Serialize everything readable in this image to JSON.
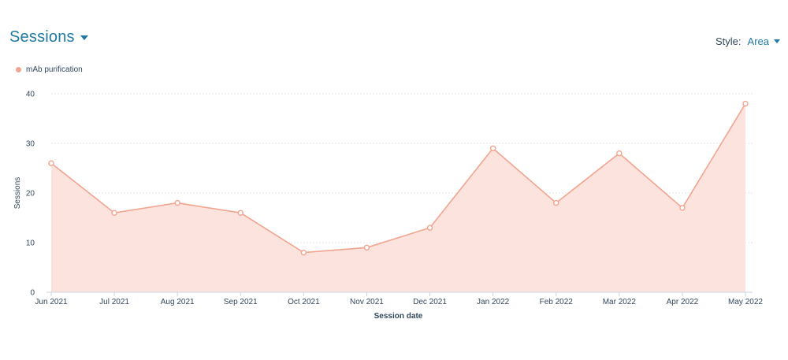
{
  "header": {
    "title": "Sessions"
  },
  "style_control": {
    "label": "Style:",
    "value": "Area"
  },
  "colors": {
    "series": "#f2a48f",
    "fill": "#fce3de",
    "accent": "#1f7aa3",
    "grid": "#dfe3eb",
    "axis": "#cbd6e2"
  },
  "chart_data": {
    "type": "area",
    "categories": [
      "Jun 2021",
      "Jul 2021",
      "Aug 2021",
      "Sep 2021",
      "Oct 2021",
      "Nov 2021",
      "Dec 2021",
      "Jan 2022",
      "Feb 2022",
      "Mar 2022",
      "Apr 2022",
      "May 2022"
    ],
    "series": [
      {
        "name": "mAb purification",
        "values": [
          26,
          16,
          18,
          16,
          8,
          9,
          13,
          29,
          18,
          28,
          17,
          38
        ]
      }
    ],
    "xlabel": "Session date",
    "ylabel": "Sessions",
    "ylim": [
      0,
      40
    ],
    "yticks": [
      0,
      10,
      20,
      30,
      40
    ],
    "grid": true,
    "legend": "top-left"
  }
}
